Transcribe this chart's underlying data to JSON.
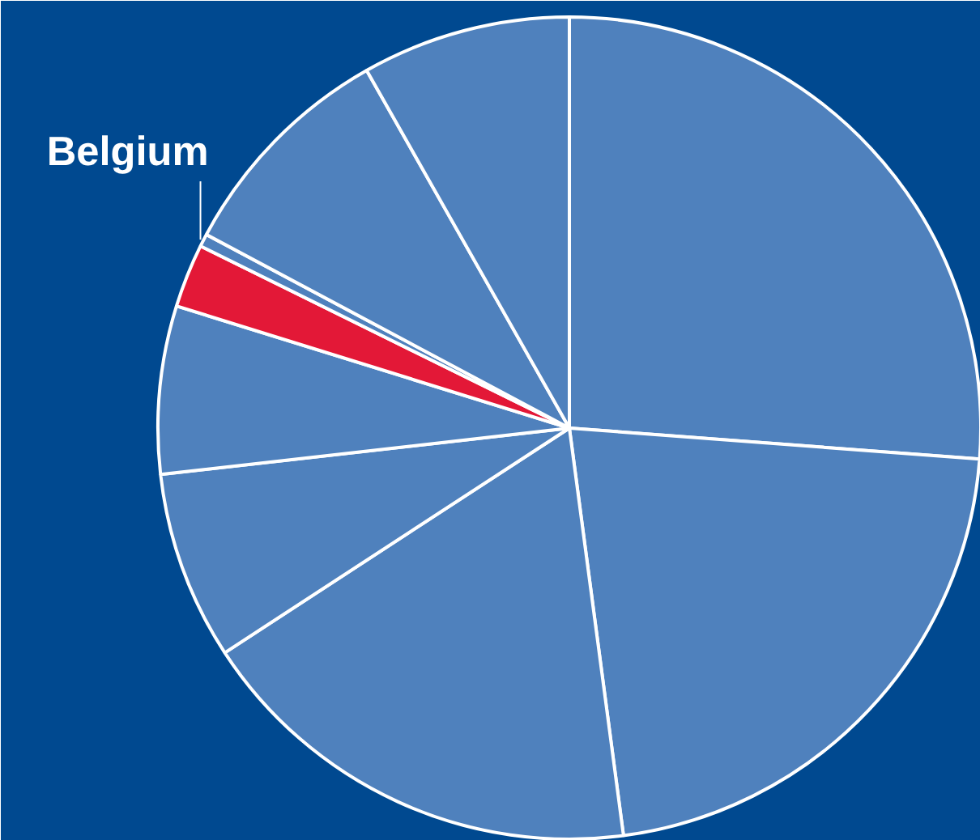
{
  "chart_data": {
    "type": "pie",
    "categories": [
      null,
      null,
      null,
      null,
      null,
      "Belgium",
      null,
      null,
      null
    ],
    "values": [
      26.2,
      21.7,
      17.9,
      7.4,
      6.6,
      2.5,
      0.5,
      9.0,
      8.2
    ],
    "colors": [
      "#4f81bd",
      "#4f81bd",
      "#4f81bd",
      "#4f81bd",
      "#4f81bd",
      "#e31837",
      "#4f81bd",
      "#4f81bd",
      "#4f81bd"
    ]
  }
}
